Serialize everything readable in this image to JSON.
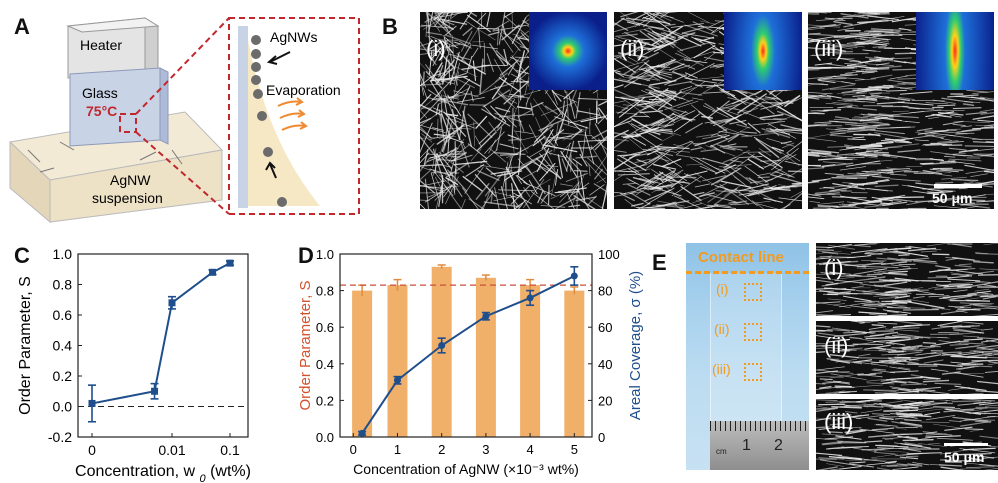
{
  "panels": {
    "A": {
      "letter": "A",
      "heater": "Heater",
      "glass": "Glass",
      "temp": "75°C",
      "agnws": "AgNWs",
      "evaporation": "Evaporation",
      "suspension_line1": "AgNW",
      "suspension_line2": "suspension"
    },
    "B": {
      "letter": "B",
      "labels": [
        "(i)",
        "(ii)",
        "(iii)"
      ],
      "scale": "50 μm"
    },
    "C": {
      "letter": "C",
      "ylabel": "Order Parameter, S",
      "xlabel": "Concentration, w",
      "xlabel_sub": "0",
      "xlabel_unit": " (wt%)"
    },
    "D": {
      "letter": "D",
      "ylabel_left": "Order Parameter, S",
      "ylabel_right": "Areal Coverage, σ (%)",
      "xlabel": "Concentration of AgNW (×10⁻³ wt%)"
    },
    "E": {
      "letter": "E",
      "contact_line": "Contact line",
      "markers": [
        "(i)",
        "(ii)",
        "(iii)"
      ],
      "ruler_labels": [
        "1",
        "2"
      ],
      "ruler_cm": "cm",
      "labels": [
        "(i)",
        "(ii)",
        "(iii)"
      ],
      "scale": "50 μm"
    }
  },
  "chart_data": [
    {
      "type": "line",
      "panel": "C",
      "title": "",
      "xlabel": "Concentration, w0 (wt%)",
      "ylabel": "Order Parameter, S",
      "x_tick_labels": [
        "0",
        "0.01",
        "0.1"
      ],
      "ylim": [
        -0.2,
        1.0
      ],
      "y_ticks": [
        "-0.2",
        "0.0",
        "0.2",
        "0.4",
        "0.6",
        "0.8",
        "1.0"
      ],
      "points": [
        {
          "x": 0,
          "y": 0.02,
          "err": 0.12
        },
        {
          "x": 0.005,
          "y": 0.1,
          "err": 0.05
        },
        {
          "x": 0.01,
          "y": 0.68,
          "err": 0.04
        },
        {
          "x": 0.05,
          "y": 0.88,
          "err": 0.015
        },
        {
          "x": 0.1,
          "y": 0.94,
          "err": 0.015
        }
      ],
      "reference_line": 0.0,
      "color": "#1f4e8c"
    },
    {
      "type": "bar",
      "panel": "D",
      "xlabel": "Concentration of AgNW (×10⁻³ wt%)",
      "ylabel_left": "Order Parameter, S",
      "ylabel_right": "Areal Coverage, σ (%)",
      "x_ticks": [
        "0",
        "1",
        "2",
        "3",
        "4",
        "5"
      ],
      "xlim": [
        -0.3,
        5.4
      ],
      "ylim_left": [
        0,
        1.0
      ],
      "y_ticks_left": [
        "0.0",
        "0.2",
        "0.4",
        "0.6",
        "0.8",
        "1.0"
      ],
      "ylim_right": [
        0,
        100
      ],
      "y_ticks_right": [
        "0",
        "20",
        "40",
        "60",
        "80",
        "100"
      ],
      "bars": [
        {
          "x": 0.2,
          "value": 0.8,
          "err": 0.03
        },
        {
          "x": 1,
          "value": 0.83,
          "err": 0.03
        },
        {
          "x": 2,
          "value": 0.93,
          "err": 0.01
        },
        {
          "x": 3,
          "value": 0.87,
          "err": 0.015
        },
        {
          "x": 4,
          "value": 0.83,
          "err": 0.03
        },
        {
          "x": 5,
          "value": 0.8,
          "err": 0.02
        }
      ],
      "bar_color": "#f0b06a",
      "reference_line_left": 0.83,
      "line_series": {
        "values": [
          {
            "x": 0.2,
            "y": 2,
            "err": 1
          },
          {
            "x": 1,
            "y": 31,
            "err": 2
          },
          {
            "x": 2,
            "y": 50,
            "err": 4
          },
          {
            "x": 3,
            "y": 66,
            "err": 2
          },
          {
            "x": 4,
            "y": 76,
            "err": 4
          },
          {
            "x": 5,
            "y": 88,
            "err": 5
          }
        ],
        "color": "#1f4e8c"
      }
    }
  ]
}
